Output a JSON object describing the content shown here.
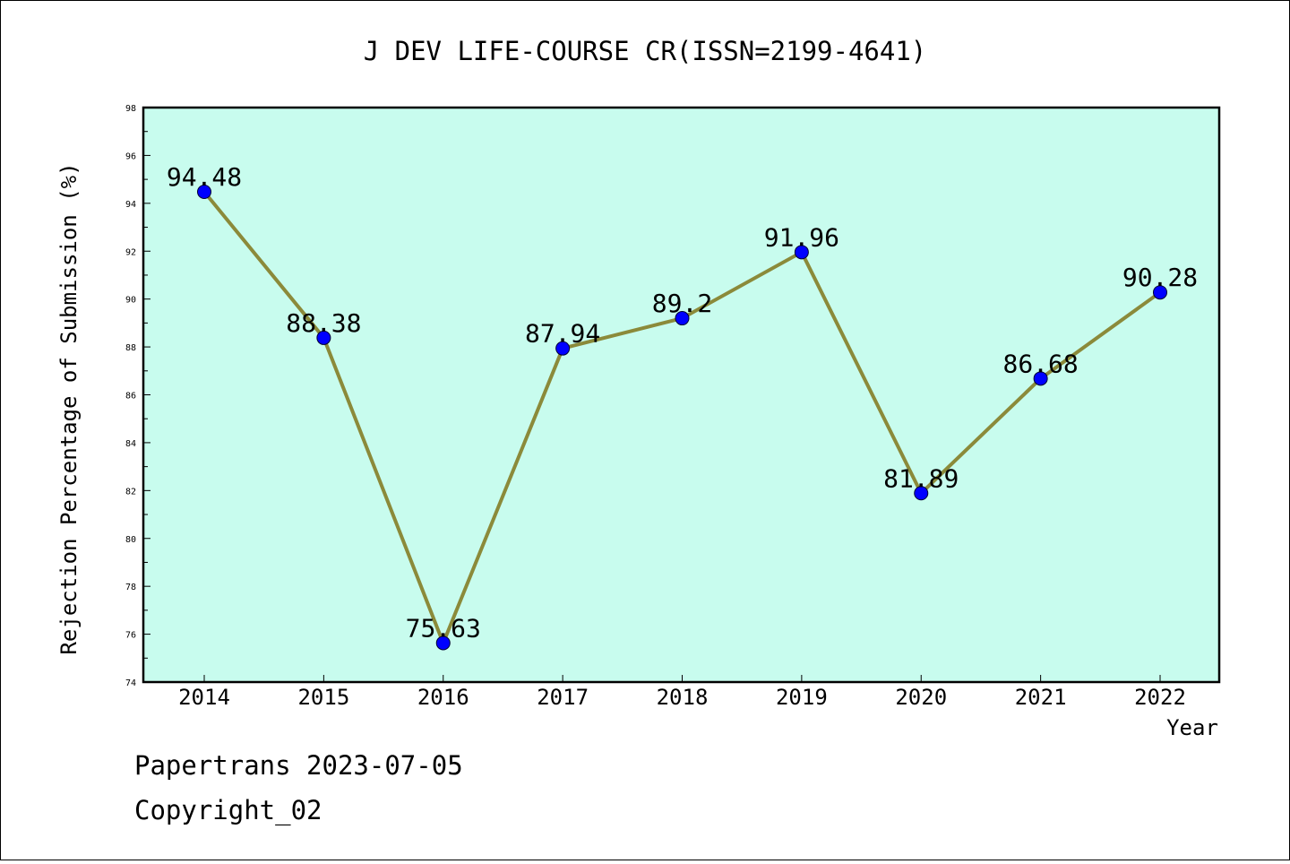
{
  "chart_data": {
    "type": "line",
    "title": "J DEV LIFE-COURSE CR(ISSN=2199-4641)",
    "xlabel": "Year",
    "ylabel": "Rejection Percentage of Submission (%)",
    "categories": [
      "2014",
      "2015",
      "2016",
      "2017",
      "2018",
      "2019",
      "2020",
      "2021",
      "2022"
    ],
    "values": [
      94.48,
      88.38,
      75.63,
      87.94,
      89.2,
      91.96,
      81.89,
      86.68,
      90.28
    ],
    "data_labels": [
      "94.48",
      "88.38",
      "75.63",
      "87.94",
      "89.2",
      "91.96",
      "81.89",
      "86.68",
      "90.28"
    ],
    "ylim": [
      74,
      98
    ],
    "yticks": [
      "74",
      "76",
      "78",
      "80",
      "82",
      "84",
      "86",
      "88",
      "90",
      "92",
      "94",
      "96",
      "98"
    ],
    "grid": false,
    "colors": {
      "plot_background": "#c8fcee",
      "line": "#8b8a3a",
      "marker": "#0000ff"
    }
  },
  "footer": {
    "line1": "Papertrans 2023-07-05",
    "line2": "Copyright_02"
  }
}
